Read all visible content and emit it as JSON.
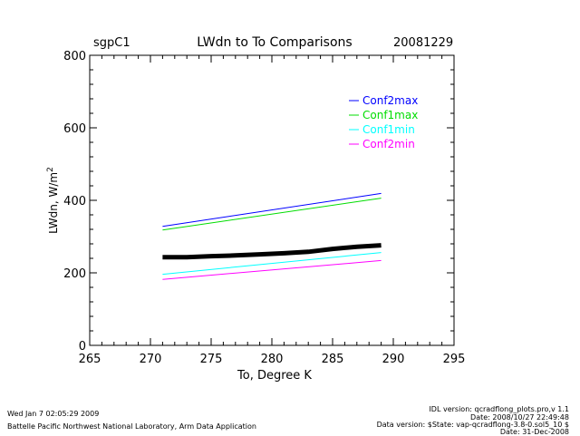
{
  "chart_data": {
    "type": "line",
    "title": "LWdn to To Comparisons",
    "site": "sgpC1",
    "date": "20081229",
    "xlabel": "To, Degree K",
    "ylabel": "LWdn, W/m",
    "ylabel_superscript": "2",
    "xlim": [
      265,
      295
    ],
    "ylim": [
      0,
      800
    ],
    "xticks": [
      "265",
      "270",
      "275",
      "280",
      "285",
      "290",
      "295"
    ],
    "yticks": [
      "0",
      "200",
      "400",
      "600",
      "800"
    ],
    "grid": false,
    "legend_placement": "top-right",
    "series": [
      {
        "name": "Conf2max",
        "color": "#0000ff",
        "x": [
          271,
          289
        ],
        "values": [
          328,
          419
        ]
      },
      {
        "name": "Conf1max",
        "color": "#00dd00",
        "x": [
          271,
          289
        ],
        "values": [
          318,
          406
        ]
      },
      {
        "name": "Conf1min",
        "color": "#00ffff",
        "x": [
          271,
          289
        ],
        "values": [
          196,
          256
        ]
      },
      {
        "name": "Conf2min",
        "color": "#ff00ff",
        "x": [
          271,
          289
        ],
        "values": [
          182,
          234
        ]
      }
    ],
    "observed": {
      "color": "#000000",
      "x": [
        271,
        273,
        275,
        277,
        279,
        281,
        283,
        285,
        287,
        289
      ],
      "values": [
        243,
        243,
        246,
        248,
        251,
        254,
        258,
        266,
        272,
        276
      ]
    }
  },
  "footer": {
    "left_line1": "Wed Jan  7 02:05:29 2009",
    "left_line2": "Battelle Pacific Northwest National Laboratory, Arm Data Application",
    "right_line1": "IDL version: qcradflong_plots.pro,v 1.1",
    "right_line2": "Date: 2008/10/27 22:49:48",
    "right_line3": "Data version: $State: vap-qcradflong-3.8-0.sol5_10 $",
    "right_line4": "Date: 31-Dec-2008"
  }
}
